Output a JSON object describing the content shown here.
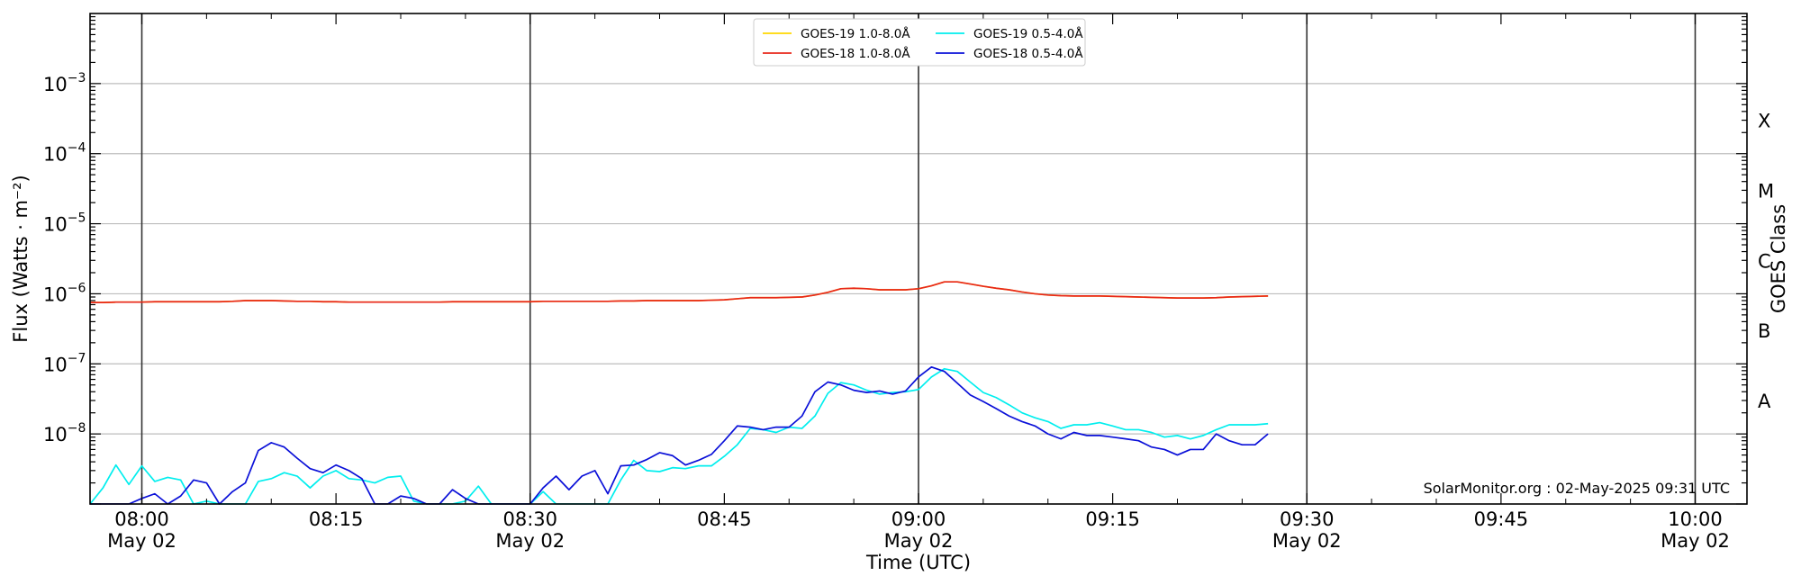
{
  "chart_data": {
    "type": "line",
    "xlabel": "Time (UTC)",
    "ylabel": "Flux (Watts · m⁻²)",
    "right_label": "GOES Class",
    "watermark": "SolarMonitor.org : 02-May-2025 09:31 UTC",
    "y_scale": "log",
    "ylim": [
      1e-09,
      0.01
    ],
    "xlim": [
      "07:56",
      "10:04"
    ],
    "grid": "horizontal",
    "legend_placement": "top-center",
    "x_ticks": [
      {
        "t": "08:00",
        "label": "08:00",
        "sub": "May 02",
        "major": true
      },
      {
        "t": "08:15",
        "label": "08:15",
        "sub": "",
        "major": false
      },
      {
        "t": "08:30",
        "label": "08:30",
        "sub": "May 02",
        "major": true
      },
      {
        "t": "08:45",
        "label": "08:45",
        "sub": "",
        "major": false
      },
      {
        "t": "09:00",
        "label": "09:00",
        "sub": "May 02",
        "major": true
      },
      {
        "t": "09:15",
        "label": "09:15",
        "sub": "",
        "major": false
      },
      {
        "t": "09:30",
        "label": "09:30",
        "sub": "May 02",
        "major": true
      },
      {
        "t": "09:45",
        "label": "09:45",
        "sub": "",
        "major": false
      },
      {
        "t": "10:00",
        "label": "10:00",
        "sub": "May 02",
        "major": true
      }
    ],
    "y_ticks": [
      {
        "v": 1e-08,
        "label": "10",
        "exp": "−8"
      },
      {
        "v": 1e-07,
        "label": "10",
        "exp": "−7"
      },
      {
        "v": 1e-06,
        "label": "10",
        "exp": "−6"
      },
      {
        "v": 1e-05,
        "label": "10",
        "exp": "−5"
      },
      {
        "v": 0.0001,
        "label": "10",
        "exp": "−4"
      },
      {
        "v": 0.001,
        "label": "10",
        "exp": "−3"
      }
    ],
    "goes_classes": [
      {
        "label": "A",
        "v": 3e-08
      },
      {
        "label": "B",
        "v": 3e-07
      },
      {
        "label": "C",
        "v": 3e-06
      },
      {
        "label": "M",
        "v": 3e-05
      },
      {
        "label": "X",
        "v": 0.0003
      }
    ],
    "x_minutes": [
      "07:56",
      "07:57",
      "07:58",
      "07:59",
      "08:00",
      "08:01",
      "08:02",
      "08:03",
      "08:04",
      "08:05",
      "08:06",
      "08:07",
      "08:08",
      "08:09",
      "08:10",
      "08:11",
      "08:12",
      "08:13",
      "08:14",
      "08:15",
      "08:16",
      "08:17",
      "08:18",
      "08:19",
      "08:20",
      "08:21",
      "08:22",
      "08:23",
      "08:24",
      "08:25",
      "08:26",
      "08:27",
      "08:28",
      "08:29",
      "08:30",
      "08:31",
      "08:32",
      "08:33",
      "08:34",
      "08:35",
      "08:36",
      "08:37",
      "08:38",
      "08:39",
      "08:40",
      "08:41",
      "08:42",
      "08:43",
      "08:44",
      "08:45",
      "08:46",
      "08:47",
      "08:48",
      "08:49",
      "08:50",
      "08:51",
      "08:52",
      "08:53",
      "08:54",
      "08:55",
      "08:56",
      "08:57",
      "08:58",
      "08:59",
      "09:00",
      "09:01",
      "09:02",
      "09:03",
      "09:04",
      "09:05",
      "09:06",
      "09:07",
      "09:08",
      "09:09",
      "09:10",
      "09:11",
      "09:12",
      "09:13",
      "09:14",
      "09:15",
      "09:16",
      "09:17",
      "09:18",
      "09:19",
      "09:20",
      "09:21",
      "09:22",
      "09:23",
      "09:24",
      "09:25",
      "09:26",
      "09:27"
    ],
    "series": [
      {
        "name": "GOES-19 1.0-8.0Å",
        "color": "#ffd700",
        "values": [
          7.5e-07,
          7.5e-07,
          7.6e-07,
          7.6e-07,
          7.6e-07,
          7.7e-07,
          7.7e-07,
          7.7e-07,
          7.7e-07,
          7.7e-07,
          7.7e-07,
          7.8e-07,
          8e-07,
          8e-07,
          8e-07,
          7.9e-07,
          7.8e-07,
          7.8e-07,
          7.7e-07,
          7.7e-07,
          7.6e-07,
          7.6e-07,
          7.6e-07,
          7.6e-07,
          7.6e-07,
          7.6e-07,
          7.6e-07,
          7.6e-07,
          7.7e-07,
          7.7e-07,
          7.7e-07,
          7.7e-07,
          7.7e-07,
          7.7e-07,
          7.7e-07,
          7.8e-07,
          7.8e-07,
          7.8e-07,
          7.8e-07,
          7.8e-07,
          7.8e-07,
          7.9e-07,
          7.9e-07,
          8e-07,
          8e-07,
          8e-07,
          8e-07,
          8e-07,
          8.1e-07,
          8.2e-07,
          8.5e-07,
          8.8e-07,
          8.8e-07,
          8.8e-07,
          8.9e-07,
          9e-07,
          9.6e-07,
          1.05e-06,
          1.18e-06,
          1.2e-06,
          1.18e-06,
          1.14e-06,
          1.14e-06,
          1.14e-06,
          1.18e-06,
          1.3e-06,
          1.48e-06,
          1.48e-06,
          1.38e-06,
          1.28e-06,
          1.2e-06,
          1.14e-06,
          1.06e-06,
          1e-06,
          9.6e-07,
          9.4e-07,
          9.3e-07,
          9.3e-07,
          9.3e-07,
          9.2e-07,
          9.1e-07,
          9e-07,
          8.9e-07,
          8.8e-07,
          8.7e-07,
          8.7e-07,
          8.7e-07,
          8.8e-07,
          9e-07,
          9.1e-07,
          9.2e-07,
          9.3e-07
        ]
      },
      {
        "name": "GOES-18 1.0-8.0Å",
        "color": "#e8261a",
        "values": [
          7.5e-07,
          7.5e-07,
          7.6e-07,
          7.6e-07,
          7.6e-07,
          7.7e-07,
          7.7e-07,
          7.7e-07,
          7.7e-07,
          7.7e-07,
          7.7e-07,
          7.8e-07,
          8e-07,
          8e-07,
          8e-07,
          7.9e-07,
          7.8e-07,
          7.8e-07,
          7.7e-07,
          7.7e-07,
          7.6e-07,
          7.6e-07,
          7.6e-07,
          7.6e-07,
          7.6e-07,
          7.6e-07,
          7.6e-07,
          7.6e-07,
          7.7e-07,
          7.7e-07,
          7.7e-07,
          7.7e-07,
          7.7e-07,
          7.7e-07,
          7.7e-07,
          7.8e-07,
          7.8e-07,
          7.8e-07,
          7.8e-07,
          7.8e-07,
          7.8e-07,
          7.9e-07,
          7.9e-07,
          8e-07,
          8e-07,
          8e-07,
          8e-07,
          8e-07,
          8.1e-07,
          8.2e-07,
          8.5e-07,
          8.8e-07,
          8.8e-07,
          8.8e-07,
          8.9e-07,
          9e-07,
          9.6e-07,
          1.05e-06,
          1.18e-06,
          1.2e-06,
          1.18e-06,
          1.14e-06,
          1.14e-06,
          1.14e-06,
          1.18e-06,
          1.3e-06,
          1.48e-06,
          1.48e-06,
          1.38e-06,
          1.28e-06,
          1.2e-06,
          1.14e-06,
          1.06e-06,
          1e-06,
          9.6e-07,
          9.4e-07,
          9.3e-07,
          9.3e-07,
          9.3e-07,
          9.2e-07,
          9.1e-07,
          9e-07,
          8.9e-07,
          8.8e-07,
          8.7e-07,
          8.7e-07,
          8.7e-07,
          8.8e-07,
          9e-07,
          9.1e-07,
          9.2e-07,
          9.3e-07
        ]
      },
      {
        "name": "GOES-19 0.5-4.0Å",
        "color": "#00eeee",
        "values": [
          1e-09,
          1.7e-09,
          3.6e-09,
          1.9e-09,
          3.5e-09,
          2.1e-09,
          2.4e-09,
          2.2e-09,
          1e-09,
          1.1e-09,
          8e-10,
          8e-10,
          8e-10,
          2.1e-09,
          2.3e-09,
          2.8e-09,
          2.5e-09,
          1.7e-09,
          2.5e-09,
          3e-09,
          2.3e-09,
          2.2e-09,
          2e-09,
          2.4e-09,
          2.5e-09,
          1.1e-09,
          1e-09,
          8e-10,
          1e-09,
          1.1e-09,
          1.8e-09,
          9e-10,
          8e-10,
          8e-10,
          8e-10,
          1.5e-09,
          1e-09,
          9e-10,
          8e-10,
          8e-10,
          8e-10,
          2.2e-09,
          4.2e-09,
          3e-09,
          2.9e-09,
          3.3e-09,
          3.2e-09,
          3.5e-09,
          3.5e-09,
          4.8e-09,
          7e-09,
          1.2e-08,
          1.15e-08,
          1.05e-08,
          1.25e-08,
          1.2e-08,
          1.8e-08,
          3.8e-08,
          5.4e-08,
          5e-08,
          4.2e-08,
          3.7e-08,
          3.9e-08,
          4e-08,
          4.3e-08,
          6.5e-08,
          8.5e-08,
          7.8e-08,
          5.5e-08,
          3.9e-08,
          3.3e-08,
          2.6e-08,
          2e-08,
          1.7e-08,
          1.5e-08,
          1.2e-08,
          1.35e-08,
          1.35e-08,
          1.45e-08,
          1.3e-08,
          1.15e-08,
          1.15e-08,
          1.05e-08,
          9e-09,
          9.5e-09,
          8.5e-09,
          9.5e-09,
          1.15e-08,
          1.35e-08,
          1.35e-08,
          1.35e-08,
          1.4e-08
        ]
      },
      {
        "name": "GOES-18 0.5-4.0Å",
        "color": "#0a10d8",
        "values": [
          8e-10,
          8e-10,
          8e-10,
          1e-09,
          1.2e-09,
          1.4e-09,
          9e-10,
          1.3e-09,
          2.2e-09,
          2e-09,
          1e-09,
          1.5e-09,
          2e-09,
          5.8e-09,
          7.5e-09,
          6.5e-09,
          4.5e-09,
          3.2e-09,
          2.8e-09,
          3.6e-09,
          3e-09,
          2.3e-09,
          9e-10,
          8e-10,
          1.3e-09,
          1.2e-09,
          1e-09,
          9e-10,
          1.6e-09,
          1.2e-09,
          1e-09,
          8e-10,
          8e-10,
          8e-10,
          9e-10,
          1.7e-09,
          2.5e-09,
          1.6e-09,
          2.5e-09,
          3e-09,
          1.4e-09,
          3.5e-09,
          3.6e-09,
          4.3e-09,
          5.4e-09,
          4.9e-09,
          3.6e-09,
          4.2e-09,
          5.1e-09,
          8e-09,
          1.3e-08,
          1.25e-08,
          1.15e-08,
          1.25e-08,
          1.25e-08,
          1.8e-08,
          4e-08,
          5.5e-08,
          5e-08,
          4.2e-08,
          3.9e-08,
          4.1e-08,
          3.7e-08,
          4.1e-08,
          6.5e-08,
          9e-08,
          7.8e-08,
          5.3e-08,
          3.6e-08,
          2.9e-08,
          2.3e-08,
          1.8e-08,
          1.5e-08,
          1.3e-08,
          1e-08,
          8.5e-09,
          1.05e-08,
          9.5e-09,
          9.5e-09,
          9e-09,
          8.5e-09,
          8e-09,
          6.5e-09,
          6e-09,
          5e-09,
          6e-09,
          6e-09,
          1e-08,
          8e-09,
          7e-09,
          7e-09,
          1e-08
        ]
      }
    ]
  }
}
